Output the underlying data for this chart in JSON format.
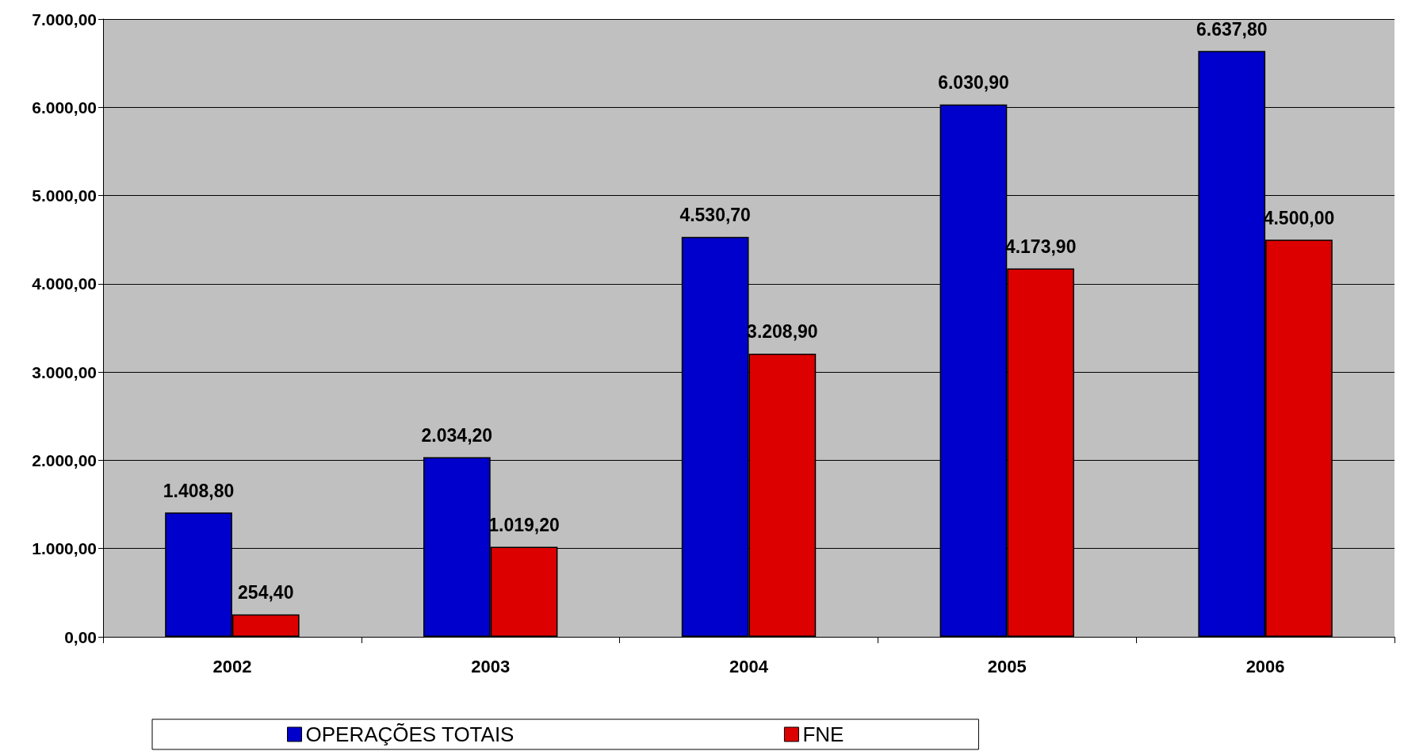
{
  "chart_data": {
    "type": "bar",
    "categories": [
      "2002",
      "2003",
      "2004",
      "2005",
      "2006"
    ],
    "series": [
      {
        "name": "OPERAÇÕES TOTAIS",
        "color": "#0000cc",
        "values": [
          1408.8,
          2034.2,
          4530.7,
          6030.9,
          6637.8
        ],
        "value_labels": [
          "1.408,80",
          "2.034,20",
          "4.530,70",
          "6.030,90",
          "6.637,80"
        ]
      },
      {
        "name": "FNE",
        "color": "#dd0000",
        "values": [
          254.4,
          1019.2,
          3208.9,
          4173.9,
          4500.0
        ],
        "value_labels": [
          "254,40",
          "1.019,20",
          "3.208,90",
          "4.173,90",
          "4.500,00"
        ]
      }
    ],
    "ylim": [
      0,
      7000
    ],
    "yticks": [
      {
        "value": 0,
        "label": "0,00"
      },
      {
        "value": 1000,
        "label": "1.000,00"
      },
      {
        "value": 2000,
        "label": "2.000,00"
      },
      {
        "value": 3000,
        "label": "3.000,00"
      },
      {
        "value": 4000,
        "label": "4.000,00"
      },
      {
        "value": 5000,
        "label": "5.000,00"
      },
      {
        "value": 6000,
        "label": "6.000,00"
      },
      {
        "value": 7000,
        "label": "7.000,00"
      }
    ],
    "grid": "y",
    "legend": "bottom"
  }
}
